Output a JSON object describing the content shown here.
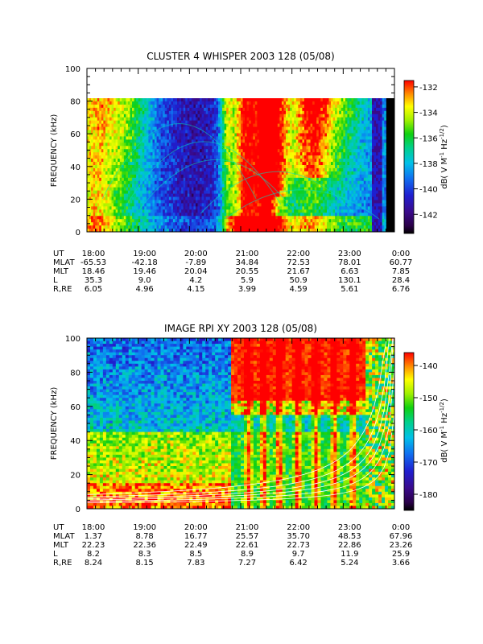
{
  "chart_data": [
    {
      "type": "heatmap",
      "title": "CLUSTER 4 WHISPER 2003 128 (05/08)",
      "ylabel": "FREQUENCY (kHz)",
      "ylim": [
        0,
        100
      ],
      "yticks": [
        "0",
        "20",
        "40",
        "60",
        "80",
        "100"
      ],
      "x_ticklabels": [
        "18:00",
        "19:00",
        "20:00",
        "21:00",
        "22:00",
        "23:00",
        "0:00"
      ],
      "data_frequency_max_khz": 80,
      "colorbar": {
        "label": "dB( V M⁻¹ Hz⁻¹ᐟ²)",
        "label_parts": [
          "dB( V M",
          "-1",
          " Hz",
          "-1/2",
          ")"
        ],
        "range": [
          -143.5,
          -131.5
        ],
        "ticks": [
          "-132",
          "-134",
          "-136",
          "-138",
          "-140",
          "-142"
        ]
      },
      "ephemeris": {
        "rows": [
          {
            "name": "UT",
            "values": [
              "18:00",
              "19:00",
              "20:00",
              "21:00",
              "22:00",
              "23:00",
              "0:00"
            ]
          },
          {
            "name": "MLAT",
            "values": [
              "-65.53",
              "-42.18",
              "-7.89",
              "34.84",
              "72.53",
              "78.01",
              "60.77"
            ]
          },
          {
            "name": "MLT",
            "values": [
              "18.46",
              "19.46",
              "20.04",
              "20.55",
              "21.67",
              "6.63",
              "7.85"
            ]
          },
          {
            "name": "L",
            "values": [
              "35.3",
              "9.0",
              "4.2",
              "5.9",
              "50.9",
              "130.1",
              "28.4"
            ]
          },
          {
            "name": "R,RE",
            "values": [
              "6.05",
              "4.96",
              "4.15",
              "3.99",
              "4.59",
              "5.61",
              "6.76"
            ]
          }
        ]
      }
    },
    {
      "type": "heatmap",
      "title": "IMAGE RPI XY 2003 128 (05/08)",
      "ylabel": "FREQUENCY (kHz)",
      "ylim": [
        0,
        100
      ],
      "yticks": [
        "0",
        "20",
        "40",
        "60",
        "80",
        "100"
      ],
      "x_ticklabels": [
        "18:00",
        "19:00",
        "20:00",
        "21:00",
        "22:00",
        "23:00",
        "0:00"
      ],
      "colorbar": {
        "label": "dB( V M⁻¹ Hz⁻¹ᐟ²)",
        "label_parts": [
          "dB( V M",
          "-1",
          " Hz",
          "-1/2",
          ")"
        ],
        "range": [
          -185,
          -136
        ],
        "ticks": [
          "-140",
          "-150",
          "-160",
          "-170",
          "-180"
        ]
      },
      "ephemeris": {
        "rows": [
          {
            "name": "UT",
            "values": [
              "18:00",
              "19:00",
              "20:00",
              "21:00",
              "22:00",
              "23:00",
              "0:00"
            ]
          },
          {
            "name": "MLAT",
            "values": [
              "1.37",
              "8.78",
              "16.77",
              "25.57",
              "35.70",
              "48.53",
              "67.96"
            ]
          },
          {
            "name": "MLT",
            "values": [
              "22.23",
              "22.36",
              "22.49",
              "22.61",
              "22.73",
              "22.86",
              "23.26"
            ]
          },
          {
            "name": "L",
            "values": [
              "8.2",
              "8.3",
              "8.5",
              "8.9",
              "9.7",
              "11.9",
              "25.9"
            ]
          },
          {
            "name": "R,RE",
            "values": [
              "8.24",
              "8.15",
              "7.83",
              "7.27",
              "6.42",
              "5.24",
              "3.66"
            ]
          }
        ]
      }
    }
  ]
}
